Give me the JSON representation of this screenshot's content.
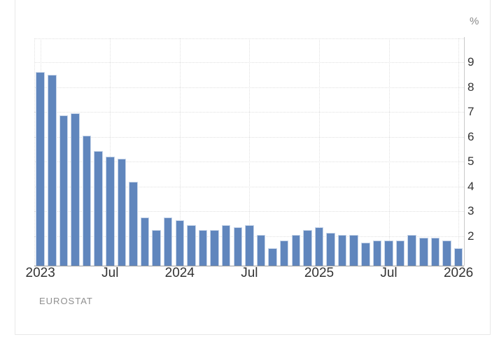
{
  "chart_data": {
    "type": "bar",
    "title": "",
    "ylabel": "%",
    "source": "EUROSTAT",
    "x_tick_labels": [
      "2023",
      "Jul",
      "2024",
      "Jul",
      "2025",
      "Jul",
      "2026"
    ],
    "y_tick_labels": [
      "2",
      "3",
      "4",
      "5",
      "6",
      "7",
      "8",
      "9"
    ],
    "ylim": [
      1,
      10
    ],
    "grid": true,
    "legend": "none",
    "bar_color": "#6086bd",
    "categories": [
      "2023-01",
      "2023-02",
      "2023-03",
      "2023-04",
      "2023-05",
      "2023-06",
      "2023-07",
      "2023-08",
      "2023-09",
      "2023-10",
      "2023-11",
      "2023-12",
      "2024-01",
      "2024-02",
      "2024-03",
      "2024-04",
      "2024-05",
      "2024-06",
      "2024-07",
      "2024-08",
      "2024-09",
      "2024-10",
      "2024-11",
      "2024-12",
      "2025-01",
      "2025-02",
      "2025-03",
      "2025-04",
      "2025-05",
      "2025-06",
      "2025-07",
      "2025-08",
      "2025-09",
      "2025-10",
      "2025-11",
      "2025-12",
      "2026-01"
    ],
    "values": [
      8.6,
      8.5,
      6.9,
      7.0,
      6.1,
      5.5,
      5.3,
      5.2,
      4.3,
      2.9,
      2.4,
      2.9,
      2.8,
      2.6,
      2.4,
      2.4,
      2.6,
      2.5,
      2.6,
      2.2,
      1.7,
      2.0,
      2.2,
      2.4,
      2.5,
      2.3,
      2.2,
      2.2,
      1.9,
      2.0,
      2.0,
      2.0,
      2.2,
      2.1,
      2.1,
      2.0,
      1.7
    ]
  }
}
